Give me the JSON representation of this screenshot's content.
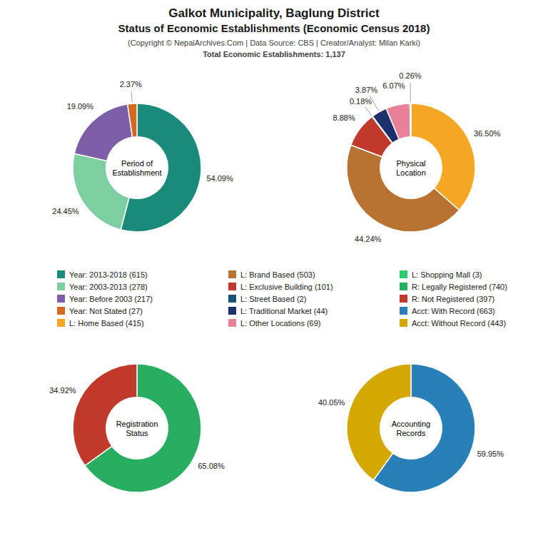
{
  "title": [
    "Galkot Municipality, Baglung District",
    "Status of Economic Establishments (Economic Census 2018)"
  ],
  "subtitle": [
    "(Copyright © NepalArchives.Com | Data Source: CBS | Creator/Analyst: Milan Karki)",
    "Total Economic Establishments: 1,137"
  ],
  "chart_data": [
    {
      "type": "pie",
      "title": "Period of\nEstablishment",
      "categories": [
        "Year: 2013-2018 (615)",
        "Year: 2003-2013 (278)",
        "Year: Before 2003 (217)",
        "Year: Not Stated (27)"
      ],
      "values": [
        54.09,
        24.45,
        19.09,
        2.37
      ],
      "value_labels": [
        "54.09%",
        "24.45%",
        "19.09%",
        "2.37%"
      ],
      "colors": [
        "#1a8a7a",
        "#7dcea0",
        "#7b5ea7",
        "#d2691e"
      ],
      "data_labels": true
    },
    {
      "type": "pie",
      "title": "Physical\nLocation",
      "categories": [
        "L: Home Based (415)",
        "L: Brand Based (503)",
        "L: Exclusive Building (101)",
        "L: Street Based (2)",
        "L: Traditional Market (44)",
        "L: Other Locations (69)",
        "L: Shopping Mall (3)"
      ],
      "values": [
        36.5,
        44.24,
        8.88,
        0.18,
        3.87,
        6.07,
        0.26
      ],
      "value_labels": [
        "36.50%",
        "44.24%",
        "8.88%",
        "0.18%",
        "3.87%",
        "6.07%",
        "0.26%"
      ],
      "colors": [
        "#f5a623",
        "#b87333",
        "#c0392b",
        "#1a5276",
        "#1c2f6e",
        "#e8829a",
        "#2ecc71"
      ],
      "data_labels": true
    },
    {
      "type": "pie",
      "title": "Registration\nStatus",
      "categories": [
        "R: Legally Registered (740)",
        "R: Not Registered (397)"
      ],
      "values": [
        65.08,
        34.92
      ],
      "value_labels": [
        "65.08%",
        "34.92%"
      ],
      "colors": [
        "#27ae60",
        "#c0392b"
      ],
      "data_labels": true
    },
    {
      "type": "pie",
      "title": "Accounting\nRecords",
      "categories": [
        "Acct: With Record (663)",
        "Acct: Without Record (443)"
      ],
      "values": [
        59.95,
        40.05
      ],
      "value_labels": [
        "59.95%",
        "40.05%"
      ],
      "colors": [
        "#2980b9",
        "#d4a800"
      ],
      "data_labels": true
    }
  ]
}
